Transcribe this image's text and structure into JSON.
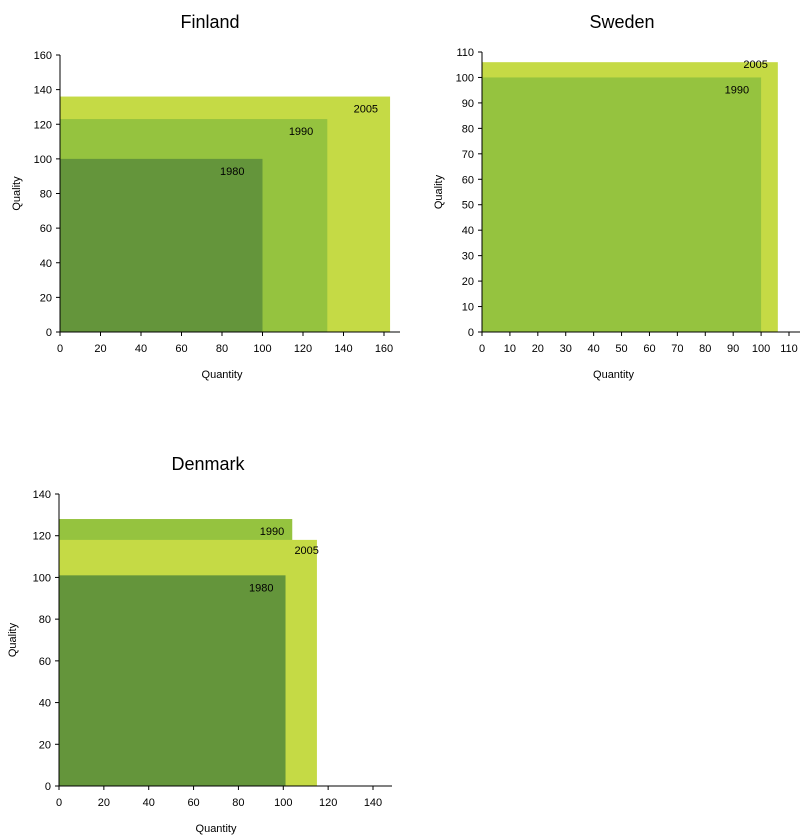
{
  "chart_data": [
    {
      "type": "area",
      "title": "Finland",
      "xlabel": "Quantity",
      "ylabel": "Quality",
      "xlim": [
        0,
        160
      ],
      "ylim": [
        0,
        160
      ],
      "xticks": [
        0,
        20,
        40,
        60,
        80,
        100,
        120,
        140,
        160
      ],
      "yticks": [
        0,
        20,
        40,
        60,
        80,
        100,
        120,
        140,
        160
      ],
      "series": [
        {
          "name": "2005",
          "x": 163,
          "y": 136,
          "color": "#c5da45"
        },
        {
          "name": "1990",
          "x": 132,
          "y": 123,
          "color": "#95c33f"
        },
        {
          "name": "1980",
          "x": 100,
          "y": 100,
          "color": "#64953b"
        }
      ]
    },
    {
      "type": "area",
      "title": "Sweden",
      "xlabel": "Quantity",
      "ylabel": "Quality",
      "xlim": [
        0,
        110
      ],
      "ylim": [
        0,
        110
      ],
      "xticks": [
        0,
        10,
        20,
        30,
        40,
        50,
        60,
        70,
        80,
        90,
        100,
        110
      ],
      "yticks": [
        0,
        10,
        20,
        30,
        40,
        50,
        60,
        70,
        80,
        90,
        100,
        110
      ],
      "series": [
        {
          "name": "2005",
          "x": 106,
          "y": 106,
          "color": "#c5da45"
        },
        {
          "name": "1990",
          "x": 100,
          "y": 100,
          "color": "#95c33f"
        }
      ]
    },
    {
      "type": "area",
      "title": "Denmark",
      "xlabel": "Quantity",
      "ylabel": "Quality",
      "xlim": [
        0,
        140
      ],
      "ylim": [
        0,
        140
      ],
      "xticks": [
        0,
        20,
        40,
        60,
        80,
        100,
        120,
        140
      ],
      "yticks": [
        0,
        20,
        40,
        60,
        80,
        100,
        120,
        140
      ],
      "series": [
        {
          "name": "1990",
          "x": 104,
          "y": 128,
          "color": "#95c33f"
        },
        {
          "name": "2005",
          "x": 115,
          "y": 118,
          "color": "#c5da45"
        },
        {
          "name": "1980",
          "x": 101,
          "y": 101,
          "color": "#64953b"
        }
      ]
    }
  ]
}
